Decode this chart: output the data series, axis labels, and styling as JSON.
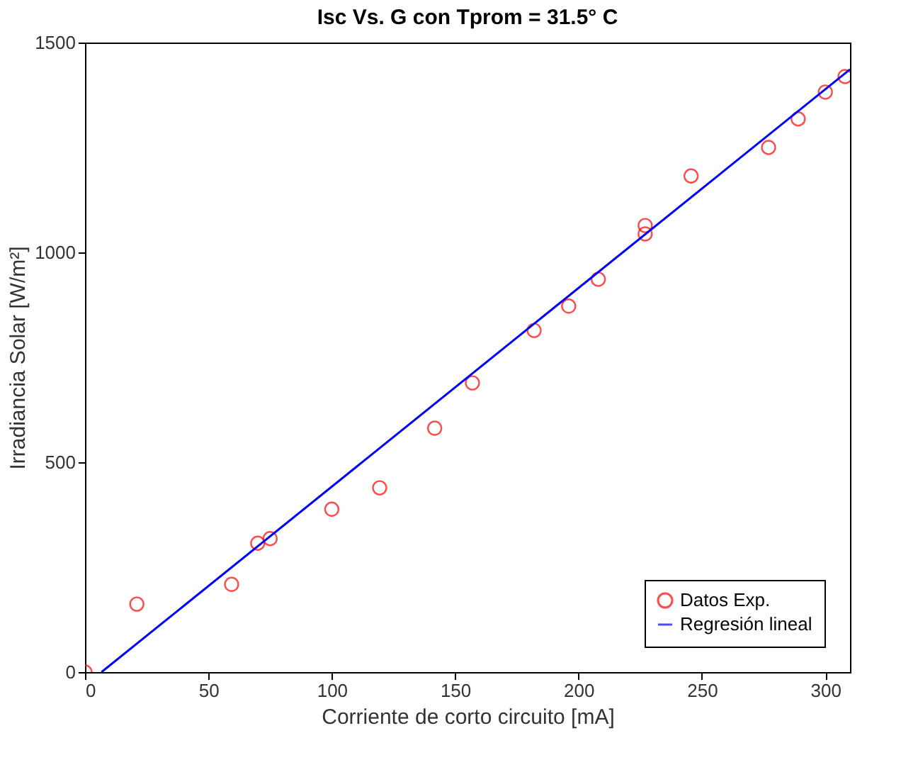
{
  "chart_data": {
    "type": "scatter",
    "title": "Isc Vs. G con Tprom = 31.5° C",
    "xlabel": "Corriente de corto circuito [mA]",
    "ylabel": "Irradiancia Solar [W/m²]",
    "xlim": [
      0,
      310
    ],
    "xticks": [
      0,
      50,
      100,
      150,
      200,
      250,
      300
    ],
    "ylim": [
      0,
      1500
    ],
    "yticks": [
      0,
      500,
      1000,
      1500
    ],
    "grid": false,
    "legend": "bottom right",
    "series": [
      {
        "name": "Datos Exp.",
        "marker": "circle",
        "color": "#ff0000",
        "x": [
          0,
          21,
          59.4,
          70,
          75,
          100,
          119.4,
          141.7,
          157,
          182,
          196,
          208,
          227,
          227,
          245.6,
          277,
          289,
          300,
          308
        ],
        "values": [
          0,
          162,
          209,
          307,
          318,
          388,
          439,
          581,
          689,
          814,
          872,
          936,
          1064,
          1044,
          1182,
          1250,
          1318,
          1382,
          1419
        ]
      },
      {
        "name": "Regresión lineal",
        "type": "line",
        "marker": "none",
        "color": "#0000ff",
        "x": [
          6.7,
          310
        ],
        "values": [
          0,
          1436
        ]
      }
    ]
  }
}
